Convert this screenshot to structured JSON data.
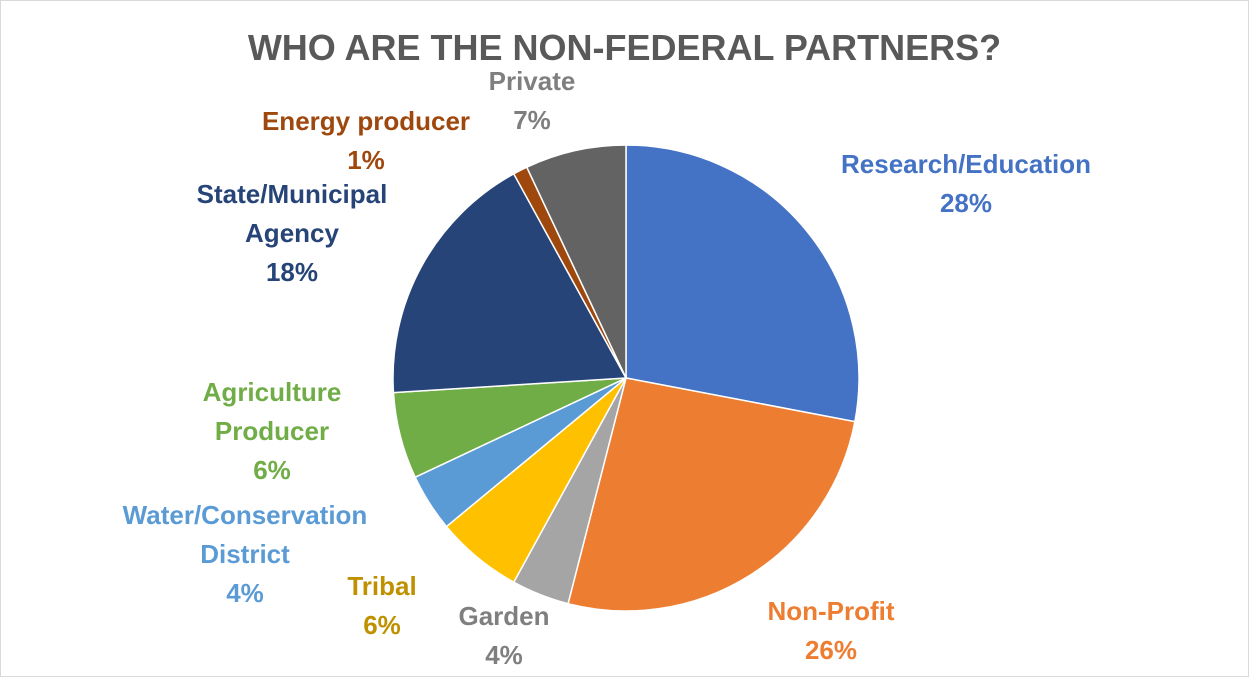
{
  "chart_data": {
    "type": "pie",
    "title": "WHO ARE THE NON-FEDERAL PARTNERS?",
    "categories": [
      "Research/Education",
      "Non-Profit",
      "Garden",
      "Tribal",
      "Water/Conservation District",
      "Agriculture Producer",
      "State/Municipal Agency",
      "Energy producer",
      "Private"
    ],
    "values": [
      28,
      26,
      4,
      6,
      4,
      6,
      18,
      1,
      7
    ],
    "value_labels": [
      "28%",
      "26%",
      "4%",
      "6%",
      "4%",
      "6%",
      "18%",
      "1%",
      "7%"
    ],
    "colors": [
      "#4472c4",
      "#ed7d31",
      "#a5a5a5",
      "#ffc000",
      "#5b9bd5",
      "#70ad47",
      "#264478",
      "#9e480e",
      "#636363"
    ],
    "label_colors": [
      "#4472c4",
      "#ed7d31",
      "#7f7f7f",
      "#bf9000",
      "#5b9bd5",
      "#70ad47",
      "#264478",
      "#9e480e",
      "#7f7f7f"
    ]
  }
}
